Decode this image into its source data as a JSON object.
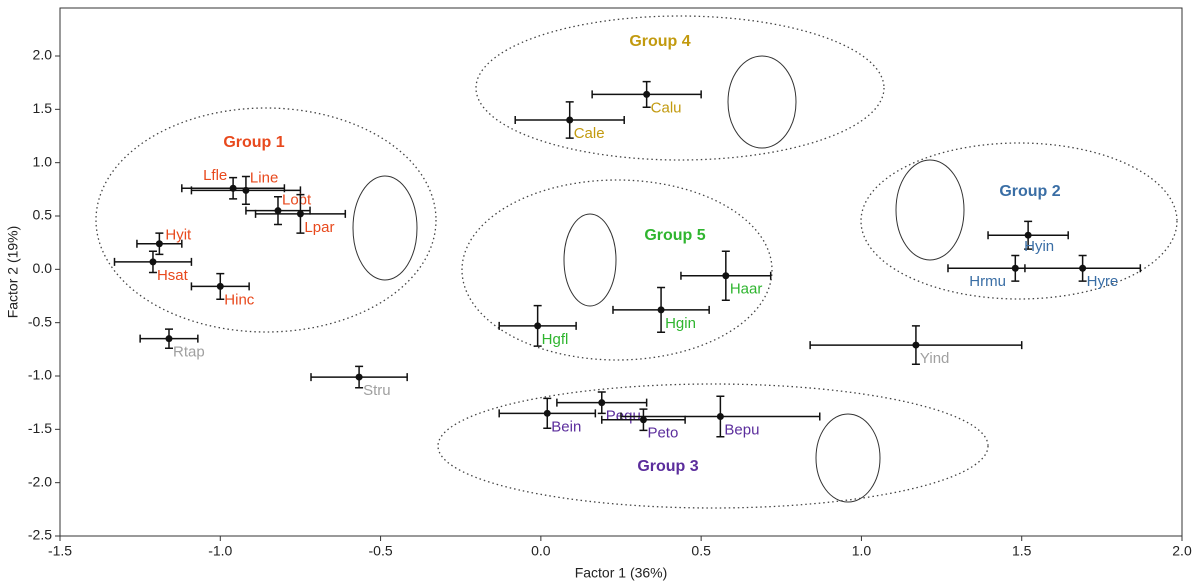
{
  "chart_data": {
    "type": "scatter",
    "xlabel": "Factor 1 (36%)",
    "ylabel": "Factor 2 (19%)",
    "xlim": [
      -1.5,
      2.0
    ],
    "ylim": [
      -2.5,
      2.45
    ],
    "xticks": [
      -1.5,
      {
        "value": -1,
        "label": "-1.0"
      },
      -0.5,
      {
        "value": 0,
        "label": "0.0"
      },
      0.5,
      {
        "value": 1,
        "label": "1.0"
      },
      1.5,
      {
        "value": 2,
        "label": "2.0"
      }
    ],
    "yticks": [
      -2.5,
      {
        "value": -2,
        "label": "-2.0"
      },
      -1.5,
      {
        "value": -1,
        "label": "-1.0"
      },
      -0.5,
      {
        "value": 0,
        "label": "0.0"
      },
      0.5,
      {
        "value": 1,
        "label": "1.0"
      },
      1.5,
      {
        "value": 2,
        "label": "2.0"
      }
    ],
    "series": [
      {
        "name": "Group 1",
        "color": "#e8491d",
        "labels": [
          "Lfle",
          "Line",
          "Lobt",
          "Lpar",
          "Hyit",
          "Hsat",
          "Hinc"
        ],
        "x": [
          -0.96,
          -0.92,
          -0.82,
          -0.75,
          -1.19,
          -1.21,
          -1.0
        ],
        "values": [
          0.76,
          0.74,
          0.55,
          0.52,
          0.24,
          0.07,
          -0.16
        ],
        "xerr": [
          0.16,
          0.17,
          0.1,
          0.14,
          0.07,
          0.12,
          0.09
        ],
        "yerr": [
          0.1,
          0.13,
          0.13,
          0.18,
          0.1,
          0.1,
          0.12
        ]
      },
      {
        "name": "Group 2",
        "color": "#3a6ea5",
        "labels": [
          "Hyin",
          "Hrmu",
          "Hyre"
        ],
        "x": [
          1.52,
          1.48,
          1.69
        ],
        "values": [
          0.32,
          0.01,
          0.01
        ],
        "xerr": [
          0.125,
          0.21,
          0.18
        ],
        "yerr": [
          0.13,
          0.12,
          0.12
        ]
      },
      {
        "name": "Group 3",
        "color": "#5b2d9c",
        "labels": [
          "Bein",
          "Pequ",
          "Peto",
          "Bepu"
        ],
        "x": [
          0.02,
          0.19,
          0.32,
          0.56
        ],
        "values": [
          -1.35,
          -1.25,
          -1.41,
          -1.38
        ],
        "xerr": [
          0.15,
          0.14,
          0.13,
          0.31
        ],
        "yerr": [
          0.14,
          0.1,
          0.1,
          0.19
        ]
      },
      {
        "name": "Group 4",
        "color": "#c29a0f",
        "labels": [
          "Cale",
          "Calu"
        ],
        "x": [
          0.09,
          0.33
        ],
        "values": [
          1.4,
          1.64
        ],
        "xerr": [
          0.17,
          0.17
        ],
        "yerr": [
          0.17,
          0.12
        ]
      },
      {
        "name": "Group 5",
        "color": "#2fb52f",
        "labels": [
          "Hgfl",
          "Hgin",
          "Haar"
        ],
        "x": [
          -0.01,
          0.375,
          0.577
        ],
        "values": [
          -0.53,
          -0.38,
          -0.06
        ],
        "xerr": [
          0.12,
          0.15,
          0.14
        ],
        "yerr": [
          0.19,
          0.21,
          0.23
        ]
      },
      {
        "color": "#a0a0a0",
        "labels": [
          "Rtap",
          "Stru",
          "Yind"
        ],
        "x": [
          -1.16,
          -0.567,
          1.17
        ],
        "values": [
          -0.65,
          -1.01,
          -0.71
        ],
        "xerr": [
          0.09,
          0.15,
          0.33
        ],
        "yerr": [
          0.09,
          0.1,
          0.18
        ]
      }
    ]
  }
}
